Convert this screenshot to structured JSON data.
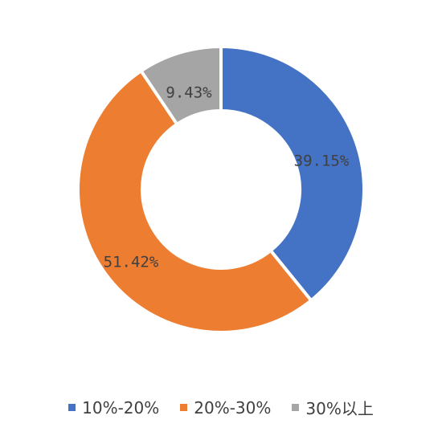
{
  "chart_data": {
    "type": "pie",
    "variant": "donut",
    "title": "",
    "slices": [
      {
        "label": "10%-20%",
        "value": 39.15,
        "display": "39.15%",
        "color": "#4472C4"
      },
      {
        "label": "20%-30%",
        "value": 51.42,
        "display": "51.42%",
        "color": "#ED7D31"
      },
      {
        "label": "30%以上",
        "value": 9.43,
        "display": "9.43%",
        "color": "#A5A5A5"
      }
    ],
    "legend_position": "bottom"
  }
}
